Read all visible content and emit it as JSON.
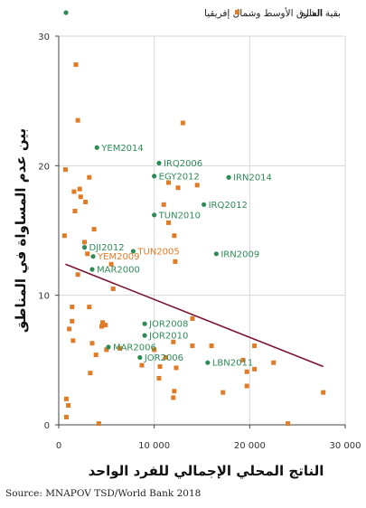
{
  "chart_data": {
    "type": "scatter",
    "xlabel": "الناتج المحلي الإجمالي للفرد الواحد",
    "ylabel": "بين عدم المساواة في المناطق",
    "xlim": [
      0,
      30000
    ],
    "ylim": [
      0,
      30
    ],
    "x_ticks": [
      {
        "value": 0,
        "label": "0"
      },
      {
        "value": 10000,
        "label": "10 000"
      },
      {
        "value": 20000,
        "label": "20 000"
      },
      {
        "value": 30000,
        "label": "30 000"
      }
    ],
    "y_ticks": [
      {
        "value": 0,
        "label": "0"
      },
      {
        "value": 10,
        "label": "10"
      },
      {
        "value": 20,
        "label": "20"
      },
      {
        "value": 30,
        "label": "30"
      }
    ],
    "grid": true,
    "legend_position": "top",
    "series": [
      {
        "name": "الشرق الأوسط وشمال إفريقيا",
        "color": "#2e8b57",
        "marker": "circle",
        "points": [
          {
            "x": 4000,
            "y": 21.4,
            "label": "YEM2014"
          },
          {
            "x": 10500,
            "y": 20.2,
            "label": "IRQ2006"
          },
          {
            "x": 10000,
            "y": 19.2,
            "label": "EGY2012"
          },
          {
            "x": 17800,
            "y": 19.1,
            "label": "IRN2014"
          },
          {
            "x": 10000,
            "y": 16.2,
            "label": "TUN2010"
          },
          {
            "x": 15200,
            "y": 17.0,
            "label": "IRQ2012"
          },
          {
            "x": 2700,
            "y": 13.7,
            "label": "DJI2012"
          },
          {
            "x": 3600,
            "y": 13.0,
            "label": "YEM2009"
          },
          {
            "x": 7800,
            "y": 13.4,
            "label": "TUN2005"
          },
          {
            "x": 16500,
            "y": 13.2,
            "label": "IRN2009"
          },
          {
            "x": 3500,
            "y": 12.0,
            "label": "MAR2000"
          },
          {
            "x": 9000,
            "y": 7.8,
            "label": "JOR2008"
          },
          {
            "x": 9000,
            "y": 6.9,
            "label": "JOR2010"
          },
          {
            "x": 5200,
            "y": 6.0,
            "label": "MAR2006"
          },
          {
            "x": 8500,
            "y": 5.2,
            "label": "JOR2006"
          },
          {
            "x": 15600,
            "y": 4.8,
            "label": "LBN2011"
          }
        ]
      },
      {
        "name": "بقية العالم",
        "color": "#e07b28",
        "marker": "square",
        "points": [
          {
            "x": 1800,
            "y": 27.8
          },
          {
            "x": 2000,
            "y": 23.5
          },
          {
            "x": 13000,
            "y": 23.3
          },
          {
            "x": 700,
            "y": 19.7
          },
          {
            "x": 3200,
            "y": 19.1
          },
          {
            "x": 11500,
            "y": 18.7
          },
          {
            "x": 14500,
            "y": 18.5
          },
          {
            "x": 12500,
            "y": 18.3
          },
          {
            "x": 2200,
            "y": 18.2
          },
          {
            "x": 1600,
            "y": 18.0
          },
          {
            "x": 2300,
            "y": 17.6
          },
          {
            "x": 2800,
            "y": 17.2
          },
          {
            "x": 11000,
            "y": 17.0
          },
          {
            "x": 1700,
            "y": 16.5
          },
          {
            "x": 3700,
            "y": 15.1
          },
          {
            "x": 11500,
            "y": 15.6
          },
          {
            "x": 600,
            "y": 14.6
          },
          {
            "x": 2700,
            "y": 14.1
          },
          {
            "x": 12100,
            "y": 14.6
          },
          {
            "x": 3000,
            "y": 13.2
          },
          {
            "x": 12200,
            "y": 12.6
          },
          {
            "x": 5500,
            "y": 12.4
          },
          {
            "x": 2000,
            "y": 11.6
          },
          {
            "x": 5700,
            "y": 10.5
          },
          {
            "x": 1400,
            "y": 9.1
          },
          {
            "x": 3200,
            "y": 9.1
          },
          {
            "x": 1400,
            "y": 8.0
          },
          {
            "x": 4600,
            "y": 7.9
          },
          {
            "x": 4900,
            "y": 7.7
          },
          {
            "x": 1100,
            "y": 7.4
          },
          {
            "x": 4500,
            "y": 7.6
          },
          {
            "x": 1500,
            "y": 6.5
          },
          {
            "x": 3500,
            "y": 6.3
          },
          {
            "x": 14000,
            "y": 8.2
          },
          {
            "x": 12000,
            "y": 6.4
          },
          {
            "x": 14000,
            "y": 6.1
          },
          {
            "x": 16000,
            "y": 6.1
          },
          {
            "x": 20500,
            "y": 6.1
          },
          {
            "x": 5000,
            "y": 5.8
          },
          {
            "x": 10000,
            "y": 5.8
          },
          {
            "x": 6400,
            "y": 5.9
          },
          {
            "x": 3900,
            "y": 5.4
          },
          {
            "x": 11200,
            "y": 5.2
          },
          {
            "x": 19300,
            "y": 5.0
          },
          {
            "x": 22500,
            "y": 4.8
          },
          {
            "x": 8700,
            "y": 4.6
          },
          {
            "x": 10600,
            "y": 4.5
          },
          {
            "x": 19700,
            "y": 4.1
          },
          {
            "x": 20500,
            "y": 4.3
          },
          {
            "x": 12300,
            "y": 4.4
          },
          {
            "x": 3300,
            "y": 4.0
          },
          {
            "x": 10500,
            "y": 3.6
          },
          {
            "x": 19700,
            "y": 3.0
          },
          {
            "x": 12100,
            "y": 2.6
          },
          {
            "x": 17200,
            "y": 2.5
          },
          {
            "x": 27700,
            "y": 2.5
          },
          {
            "x": 800,
            "y": 2.0
          },
          {
            "x": 12000,
            "y": 2.1
          },
          {
            "x": 1000,
            "y": 1.5
          },
          {
            "x": 800,
            "y": 0.6
          },
          {
            "x": 4200,
            "y": 0.1
          },
          {
            "x": 24000,
            "y": 0.1
          }
        ]
      }
    ],
    "trend_line": {
      "color": "#7b1530",
      "x_start": 700,
      "y_start": 12.4,
      "x_end": 27700,
      "y_end": 4.5
    }
  },
  "source_text": "Source: MNAPOV TSD/World Bank 2018"
}
